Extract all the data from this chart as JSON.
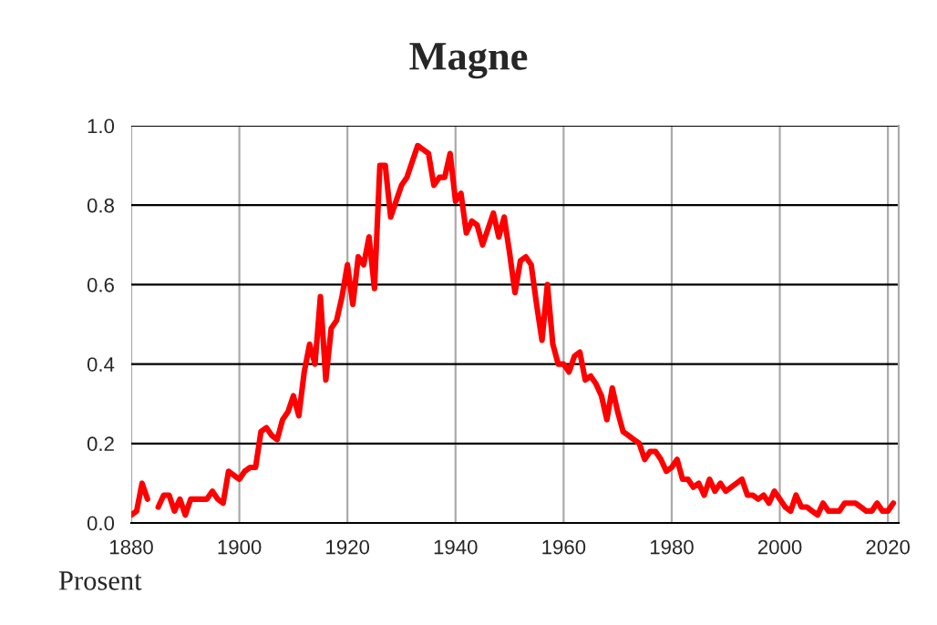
{
  "chart_data": {
    "type": "line",
    "title": "Magne",
    "annotations": [
      "Prosent"
    ],
    "x": [
      1880,
      1881,
      1882,
      1883,
      1884,
      1885,
      1886,
      1887,
      1888,
      1889,
      1890,
      1891,
      1892,
      1893,
      1894,
      1895,
      1896,
      1897,
      1898,
      1899,
      1900,
      1901,
      1902,
      1903,
      1904,
      1905,
      1906,
      1907,
      1908,
      1909,
      1910,
      1911,
      1912,
      1913,
      1914,
      1915,
      1916,
      1917,
      1918,
      1919,
      1920,
      1921,
      1922,
      1923,
      1924,
      1925,
      1926,
      1927,
      1928,
      1929,
      1930,
      1931,
      1932,
      1933,
      1934,
      1935,
      1936,
      1937,
      1938,
      1939,
      1940,
      1941,
      1942,
      1943,
      1944,
      1945,
      1946,
      1947,
      1948,
      1949,
      1950,
      1951,
      1952,
      1953,
      1954,
      1955,
      1956,
      1957,
      1958,
      1959,
      1960,
      1961,
      1962,
      1963,
      1964,
      1965,
      1966,
      1967,
      1968,
      1969,
      1970,
      1971,
      1972,
      1973,
      1974,
      1975,
      1976,
      1977,
      1978,
      1979,
      1980,
      1981,
      1982,
      1983,
      1984,
      1985,
      1986,
      1987,
      1988,
      1989,
      1990,
      1991,
      1992,
      1993,
      1994,
      1995,
      1996,
      1997,
      1998,
      1999,
      2000,
      2001,
      2002,
      2003,
      2004,
      2005,
      2006,
      2007,
      2008,
      2009,
      2010,
      2011,
      2012,
      2013,
      2014,
      2015,
      2016,
      2017,
      2018,
      2019,
      2020,
      2021
    ],
    "series": [
      {
        "color": "#ff0000",
        "values": [
          0.02,
          0.03,
          0.1,
          0.06,
          null,
          0.04,
          0.07,
          0.07,
          0.03,
          0.06,
          0.02,
          0.06,
          0.06,
          0.06,
          0.06,
          0.08,
          0.06,
          0.05,
          0.13,
          0.12,
          0.11,
          0.13,
          0.14,
          0.14,
          0.23,
          0.24,
          0.22,
          0.21,
          0.26,
          0.28,
          0.32,
          0.27,
          0.38,
          0.45,
          0.4,
          0.57,
          0.36,
          0.49,
          0.51,
          0.57,
          0.65,
          0.55,
          0.67,
          0.65,
          0.72,
          0.59,
          0.9,
          0.9,
          0.77,
          0.81,
          0.85,
          0.87,
          0.91,
          0.95,
          0.94,
          0.93,
          0.85,
          0.87,
          0.87,
          0.93,
          0.81,
          0.83,
          0.73,
          0.76,
          0.75,
          0.7,
          0.74,
          0.78,
          0.72,
          0.77,
          0.68,
          0.58,
          0.66,
          0.67,
          0.65,
          0.55,
          0.46,
          0.6,
          0.45,
          0.4,
          0.4,
          0.38,
          0.42,
          0.43,
          0.36,
          0.37,
          0.35,
          0.32,
          0.26,
          0.34,
          0.28,
          0.23,
          0.22,
          0.21,
          0.2,
          0.16,
          0.18,
          0.18,
          0.16,
          0.13,
          0.14,
          0.16,
          0.11,
          0.11,
          0.09,
          0.1,
          0.07,
          0.11,
          0.08,
          0.1,
          0.08,
          0.09,
          0.1,
          0.11,
          0.07,
          0.07,
          0.06,
          0.07,
          0.05,
          0.08,
          0.06,
          0.04,
          0.03,
          0.07,
          0.04,
          0.04,
          0.03,
          0.02,
          0.05,
          0.03,
          0.03,
          0.03,
          0.05,
          0.05,
          0.05,
          0.04,
          0.03,
          0.03,
          0.05,
          0.03,
          0.03,
          0.05
        ]
      }
    ],
    "xlim": [
      1880,
      2022
    ],
    "xticks": [
      1880,
      1900,
      1920,
      1940,
      1960,
      1980,
      2000,
      2020
    ],
    "ylim": [
      0,
      1.0
    ],
    "yticks": [
      {
        "value": 0,
        "label": "0.0"
      },
      {
        "value": 0.2,
        "label": "0.2"
      },
      {
        "value": 0.4,
        "label": "0.4"
      },
      {
        "value": 0.6,
        "label": "0.6"
      },
      {
        "value": 0.8,
        "label": "0.8"
      },
      {
        "value": 1.0,
        "label": "1.0"
      }
    ],
    "grid": true,
    "line_style": "solid"
  }
}
